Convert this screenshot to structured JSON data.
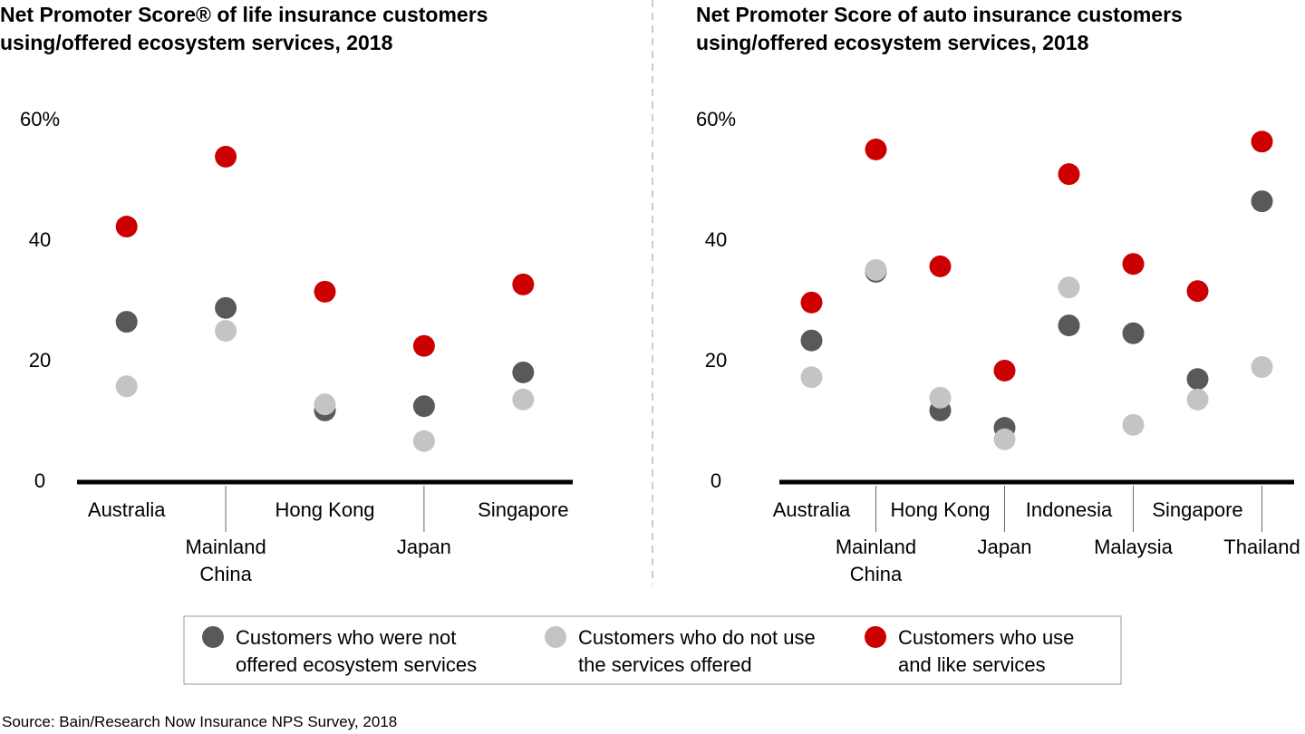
{
  "chart_data": [
    {
      "type": "dot",
      "title": "Net Promoter Score® of life insurance customers using/offered ecosystem services, 2018",
      "categories": [
        "Australia",
        "Mainland China",
        "Hong Kong",
        "Japan",
        "Singapore"
      ],
      "series": [
        {
          "name": "Customers who were not offered ecosystem services",
          "color": "#595959",
          "values": [
            26.6,
            28.9,
            11.9,
            12.6,
            18.2
          ]
        },
        {
          "name": "Customers who do not use the services offered",
          "color": "#c4c4c4",
          "values": [
            15.9,
            25.1,
            12.9,
            6.8,
            13.7
          ]
        },
        {
          "name": "Customers who use and like services",
          "color": "#cc0000",
          "values": [
            42.4,
            54.0,
            31.6,
            22.6,
            32.8
          ]
        }
      ],
      "ylim": [
        0,
        60
      ],
      "yticks": [
        0,
        20,
        40,
        {
          "value": 60,
          "label": "60%"
        }
      ]
    },
    {
      "type": "dot",
      "title": "Net Promoter Score of auto insurance customers using/offered ecosystem services, 2018",
      "categories": [
        "Australia",
        "Mainland China",
        "Hong Kong",
        "Japan",
        "Indonesia",
        "Malaysia",
        "Singapore",
        "Thailand"
      ],
      "series": [
        {
          "name": "Customers who were not offered ecosystem services",
          "color": "#595959",
          "values": [
            23.5,
            34.9,
            11.9,
            9.0,
            26.0,
            24.7,
            17.1,
            46.6
          ]
        },
        {
          "name": "Customers who do not use the services offered",
          "color": "#c4c4c4",
          "values": [
            17.4,
            35.2,
            14.0,
            7.1,
            32.3,
            9.5,
            13.7,
            19.1
          ]
        },
        {
          "name": "Customers who use and like services",
          "color": "#cc0000",
          "values": [
            29.8,
            55.2,
            35.8,
            18.5,
            51.1,
            36.2,
            31.7,
            56.5
          ]
        }
      ],
      "ylim": [
        0,
        60
      ],
      "yticks": [
        0,
        20,
        40,
        {
          "value": 60,
          "label": "60%"
        }
      ]
    }
  ],
  "source": "Source: Bain/Research Now Insurance NPS Survey, 2018"
}
